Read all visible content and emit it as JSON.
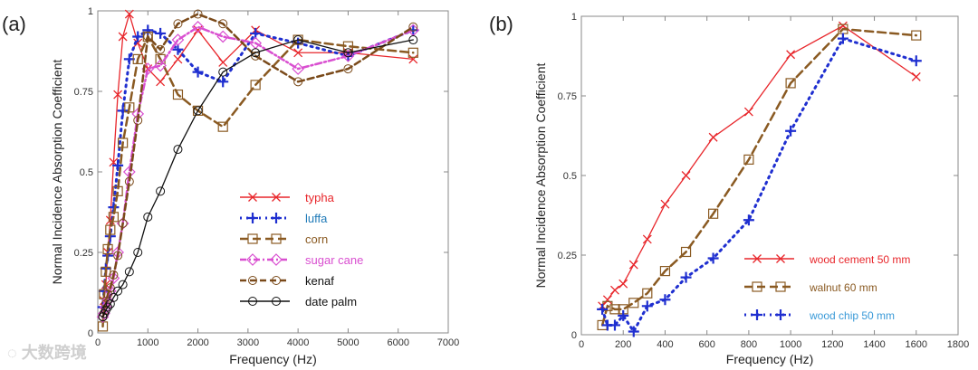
{
  "watermark": "大数跨境",
  "chart_data": [
    {
      "panel_label": "(a)",
      "type": "line",
      "xlabel": "Frequency (Hz)",
      "ylabel": "Normal Incidence Absorption Coefficient",
      "xlim": [
        0,
        7000
      ],
      "ylim": [
        0,
        1
      ],
      "xticks": [
        0,
        1000,
        2000,
        3000,
        4000,
        5000,
        6000,
        7000
      ],
      "yticks": [
        0,
        0.25,
        0.5,
        0.75,
        1
      ],
      "ytick_labels": [
        "0",
        "0.25",
        "0.5",
        "0.75",
        "1"
      ],
      "legend_position": "center-right",
      "x": [
        100,
        125,
        160,
        200,
        250,
        315,
        400,
        500,
        630,
        800,
        1000,
        1250,
        1600,
        2000,
        2500,
        3150,
        4000,
        5000,
        6300
      ],
      "series": [
        {
          "name": "typha",
          "color": "#e8262b",
          "marker": "x",
          "dash": "",
          "values": [
            0.07,
            0.1,
            0.15,
            0.25,
            0.35,
            0.53,
            0.74,
            0.92,
            0.99,
            0.9,
            0.82,
            0.78,
            0.85,
            0.94,
            0.84,
            0.94,
            0.87,
            0.87,
            0.85
          ]
        },
        {
          "name": "luffa",
          "color": "#1f2fd0",
          "legend_color": "#1f7ab8",
          "marker": "+",
          "dash": "2 5",
          "values": [
            0.08,
            0.13,
            0.2,
            0.24,
            0.3,
            0.39,
            0.52,
            0.69,
            0.85,
            0.92,
            0.94,
            0.93,
            0.88,
            0.81,
            0.78,
            0.93,
            0.9,
            0.86,
            0.94
          ]
        },
        {
          "name": "corn",
          "color": "#8a5a22",
          "marker": "square",
          "dash": "9 5",
          "values": [
            0.02,
            0.12,
            0.19,
            0.26,
            0.32,
            0.36,
            0.44,
            0.59,
            0.7,
            0.85,
            0.92,
            0.85,
            0.74,
            0.69,
            0.64,
            0.77,
            0.91,
            0.89,
            0.87
          ]
        },
        {
          "name": "sugar cane",
          "color": "#d94fd0",
          "marker": "diamond",
          "dash": "7 3 2 3",
          "values": [
            0.05,
            0.06,
            0.08,
            0.1,
            0.13,
            0.17,
            0.25,
            0.34,
            0.5,
            0.68,
            0.82,
            0.83,
            0.91,
            0.95,
            0.92,
            0.9,
            0.82,
            0.86,
            0.94
          ]
        },
        {
          "name": "kenaf",
          "color": "#7a4a1a",
          "legend_color": "#111111",
          "marker": "circle",
          "dash": "7 4",
          "values": [
            0.05,
            0.06,
            0.09,
            0.12,
            0.14,
            0.18,
            0.24,
            0.34,
            0.47,
            0.66,
            0.92,
            0.88,
            0.96,
            0.99,
            0.96,
            0.86,
            0.78,
            0.82,
            0.95
          ]
        },
        {
          "name": "date palm",
          "color": "#111111",
          "marker": "circle",
          "dash": "",
          "values": [
            0.05,
            0.06,
            0.07,
            0.08,
            0.09,
            0.11,
            0.13,
            0.15,
            0.19,
            0.25,
            0.36,
            0.44,
            0.57,
            0.69,
            0.81,
            0.87,
            0.91,
            0.87,
            0.91
          ]
        }
      ]
    },
    {
      "panel_label": "(b)",
      "type": "line",
      "xlabel": "Frequency (Hz)",
      "ylabel": "Normal Incidence Absorption Coefficient",
      "xlim": [
        0,
        1800
      ],
      "ylim": [
        0,
        1
      ],
      "xticks": [
        0,
        200,
        400,
        600,
        800,
        1000,
        1200,
        1400,
        1600,
        1800
      ],
      "yticks": [
        0,
        0.25,
        0.5,
        0.75,
        1
      ],
      "ytick_labels": [
        "0",
        "0.25",
        "0.5",
        "0.75",
        "1"
      ],
      "legend_position": "bottom-right",
      "x": [
        100,
        125,
        160,
        200,
        250,
        315,
        400,
        500,
        630,
        800,
        1000,
        1250,
        1600
      ],
      "series": [
        {
          "name": "wood cement 50 mm",
          "color": "#e8262b",
          "marker": "x",
          "dash": "",
          "values": [
            0.09,
            0.11,
            0.14,
            0.16,
            0.22,
            0.3,
            0.41,
            0.5,
            0.62,
            0.7,
            0.88,
            0.97,
            0.81
          ]
        },
        {
          "name": "walnut 60 mm",
          "color": "#8a5a22",
          "marker": "square",
          "dash": "9 5",
          "values": [
            0.03,
            0.09,
            0.08,
            0.08,
            0.1,
            0.13,
            0.2,
            0.26,
            0.38,
            0.55,
            0.79,
            0.96,
            0.94
          ]
        },
        {
          "name": "wood chip 50 mm",
          "color": "#1f2fd0",
          "legend_color": "#3a9ad8",
          "marker": "+",
          "dash": "2 5",
          "values": [
            0.08,
            0.03,
            0.03,
            0.06,
            0.01,
            0.09,
            0.11,
            0.18,
            0.24,
            0.36,
            0.64,
            0.93,
            0.86
          ]
        }
      ]
    }
  ]
}
